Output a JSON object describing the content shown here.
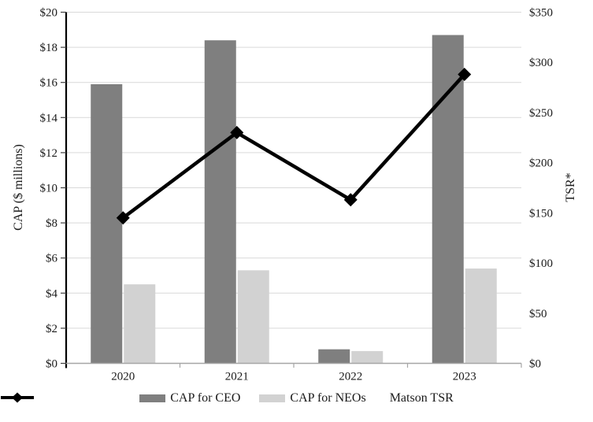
{
  "chart_data": {
    "type": "combo",
    "categories": [
      "2020",
      "2021",
      "2022",
      "2023"
    ],
    "bar_series": [
      {
        "name": "CAP for CEO",
        "values": [
          15.9,
          18.4,
          0.8,
          18.7
        ],
        "color": "#7f7f7f",
        "axis": "left"
      },
      {
        "name": "CAP for NEOs",
        "values": [
          4.5,
          5.3,
          0.7,
          5.4
        ],
        "color": "#d2d2d2",
        "axis": "left"
      }
    ],
    "line_series": [
      {
        "name": "Matson TSR",
        "values": [
          145,
          230,
          163,
          288
        ],
        "color": "#000000",
        "marker": "diamond",
        "axis": "right"
      }
    ],
    "left_axis": {
      "label": "CAP ($ millions)",
      "min": 0,
      "max": 20,
      "step": 2,
      "tick_labels": [
        "$0",
        "$2",
        "$4",
        "$6",
        "$8",
        "$10",
        "$12",
        "$14",
        "$16",
        "$18",
        "$20"
      ]
    },
    "right_axis": {
      "label": "TSR*",
      "min": 0,
      "max": 350,
      "step": 50,
      "tick_labels": [
        "$0",
        "$50",
        "$100",
        "$150",
        "$200",
        "$250",
        "$300",
        "$350"
      ]
    },
    "grid": true,
    "legend_position": "bottom"
  },
  "colors": {
    "gridline": "#d9d9d9",
    "left_axis_line": "#000000",
    "left_axis_tick": "#404040",
    "bottom_axis_line": "#a6a6a6",
    "bottom_axis_tick": "#a6a6a6",
    "text": "#1a1a1a",
    "background": "#ffffff"
  }
}
